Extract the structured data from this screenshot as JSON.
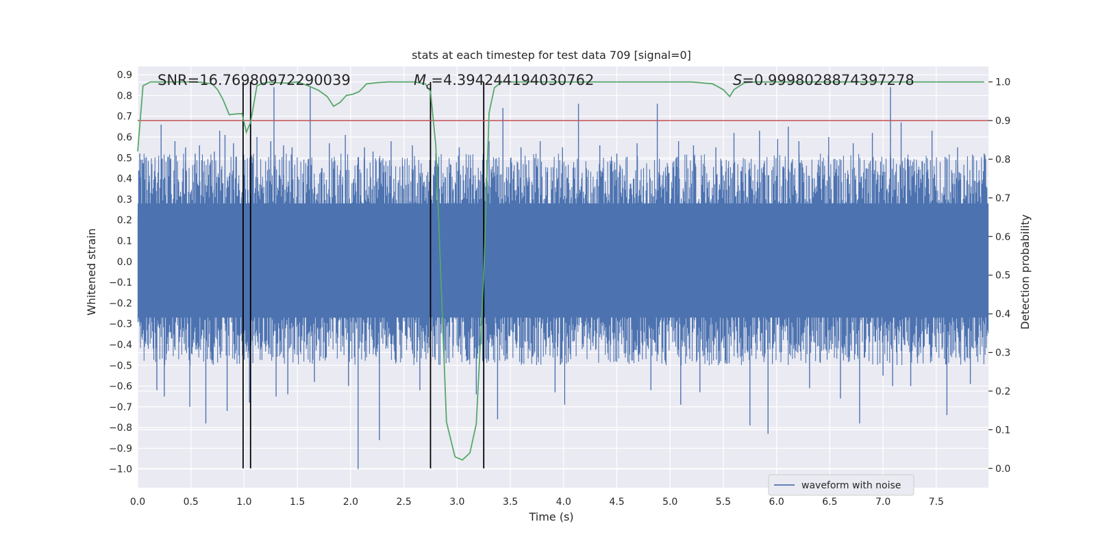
{
  "chart_data": {
    "type": "line",
    "title": "stats at each timestep for test data 709 [signal=0]",
    "xlabel": "Time (s)",
    "ylabel": "Whitened strain",
    "y2label": "Detection probability",
    "xlim": [
      0.0,
      7.99
    ],
    "ylim": [
      -1.09,
      0.94
    ],
    "y2lim": [
      -0.05,
      1.04
    ],
    "xticks": [
      "0.0",
      "0.5",
      "1.0",
      "1.5",
      "2.0",
      "2.5",
      "3.0",
      "3.5",
      "4.0",
      "4.5",
      "5.0",
      "5.5",
      "6.0",
      "6.5",
      "7.0",
      "7.5"
    ],
    "yticks": [
      "0.9",
      "0.8",
      "0.7",
      "0.6",
      "0.5",
      "0.4",
      "0.3",
      "0.2",
      "0.1",
      "0.0",
      "−0.1",
      "−0.2",
      "−0.3",
      "−0.4",
      "−0.5",
      "−0.6",
      "−0.7",
      "−0.8",
      "−0.9",
      "−1.0"
    ],
    "y2ticks": [
      "1.0",
      "0.9",
      "0.8",
      "0.7",
      "0.6",
      "0.5",
      "0.4",
      "0.3",
      "0.2",
      "0.1",
      "0.0"
    ],
    "annotations": {
      "snr": "SNR=16.76980972290039",
      "mc_symbol": "M",
      "mc_sub": "c",
      "mc_value": "=4.394244194030762",
      "s_symbol": "S",
      "s_value": "=0.9998028874397278"
    },
    "legend": {
      "label": "waveform with noise",
      "position": "lower right"
    },
    "threshold": {
      "y2": 0.9,
      "color": "#c44e52"
    },
    "vertical_lines": [
      0.99,
      1.06,
      2.75,
      3.25
    ],
    "waveform": {
      "name": "waveform with noise",
      "color": "#4c72b0",
      "spikes": [
        [
          0.02,
          0.52
        ],
        [
          0.18,
          -0.62
        ],
        [
          0.22,
          0.66
        ],
        [
          0.25,
          -0.65
        ],
        [
          0.35,
          0.58
        ],
        [
          0.45,
          0.55
        ],
        [
          0.49,
          -0.7
        ],
        [
          0.54,
          0.52
        ],
        [
          0.58,
          0.56
        ],
        [
          0.64,
          -0.78
        ],
        [
          0.72,
          0.53
        ],
        [
          0.77,
          0.63
        ],
        [
          0.82,
          0.61
        ],
        [
          0.84,
          -0.72
        ],
        [
          0.9,
          0.57
        ],
        [
          1.05,
          -0.68
        ],
        [
          1.12,
          0.6
        ],
        [
          1.25,
          0.58
        ],
        [
          1.28,
          0.84
        ],
        [
          1.3,
          -0.65
        ],
        [
          1.37,
          0.56
        ],
        [
          1.41,
          -0.64
        ],
        [
          1.45,
          0.55
        ],
        [
          1.62,
          0.84
        ],
        [
          1.66,
          -0.58
        ],
        [
          1.8,
          0.57
        ],
        [
          1.95,
          0.61
        ],
        [
          1.98,
          -0.6
        ],
        [
          2.07,
          -1.0
        ],
        [
          2.13,
          0.55
        ],
        [
          2.21,
          0.53
        ],
        [
          2.27,
          -0.86
        ],
        [
          2.38,
          0.58
        ],
        [
          2.58,
          0.56
        ],
        [
          2.65,
          -0.62
        ],
        [
          2.8,
          0.52
        ],
        [
          3.02,
          0.55
        ],
        [
          3.18,
          -0.64
        ],
        [
          3.3,
          0.58
        ],
        [
          3.38,
          -0.76
        ],
        [
          3.43,
          0.74
        ],
        [
          3.6,
          0.55
        ],
        [
          3.78,
          0.58
        ],
        [
          3.92,
          -0.63
        ],
        [
          3.99,
          0.55
        ],
        [
          4.01,
          -0.69
        ],
        [
          4.14,
          0.76
        ],
        [
          4.34,
          0.56
        ],
        [
          4.5,
          0.52
        ],
        [
          4.69,
          0.57
        ],
        [
          4.82,
          -0.62
        ],
        [
          4.88,
          0.76
        ],
        [
          5.08,
          0.58
        ],
        [
          5.1,
          -0.69
        ],
        [
          5.22,
          0.56
        ],
        [
          5.28,
          -0.63
        ],
        [
          5.43,
          0.55
        ],
        [
          5.6,
          0.62
        ],
        [
          5.75,
          -0.79
        ],
        [
          5.84,
          0.63
        ],
        [
          5.92,
          -0.83
        ],
        [
          6.01,
          0.59
        ],
        [
          6.11,
          0.65
        ],
        [
          6.21,
          0.58
        ],
        [
          6.31,
          -0.61
        ],
        [
          6.49,
          0.6
        ],
        [
          6.6,
          -0.66
        ],
        [
          6.72,
          0.57
        ],
        [
          6.78,
          -0.78
        ],
        [
          6.9,
          0.62
        ],
        [
          7.0,
          -0.55
        ],
        [
          7.07,
          0.84
        ],
        [
          7.09,
          -0.6
        ],
        [
          7.17,
          0.67
        ],
        [
          7.26,
          -0.6
        ],
        [
          7.46,
          0.63
        ],
        [
          7.6,
          -0.74
        ],
        [
          7.7,
          0.55
        ],
        [
          7.82,
          -0.59
        ],
        [
          7.95,
          0.52
        ]
      ]
    },
    "probability": {
      "name": "detection probability",
      "color": "#55a868",
      "x": [
        0.0,
        0.05,
        0.12,
        0.2,
        0.3,
        0.4,
        0.5,
        0.6,
        0.7,
        0.75,
        0.8,
        0.86,
        0.92,
        0.98,
        1.02,
        1.06,
        1.12,
        1.18,
        1.25,
        1.3,
        1.4,
        1.5,
        1.6,
        1.7,
        1.78,
        1.84,
        1.9,
        1.96,
        2.02,
        2.08,
        2.15,
        2.25,
        2.35,
        2.5,
        2.6,
        2.7,
        2.75,
        2.8,
        2.9,
        2.98,
        3.05,
        3.12,
        3.18,
        3.25,
        3.3,
        3.35,
        3.42,
        3.5,
        3.6,
        3.7,
        3.8,
        3.9,
        4.0,
        4.1,
        4.3,
        4.5,
        4.7,
        4.9,
        5.0,
        5.2,
        5.4,
        5.5,
        5.56,
        5.6,
        5.7,
        5.8,
        6.0,
        6.2,
        6.5,
        6.8,
        7.0,
        7.2,
        7.4,
        7.6,
        7.8,
        7.95
      ],
      "y": [
        0.82,
        0.99,
        1.0,
        1.0,
        1.0,
        1.0,
        1.0,
        0.999,
        0.995,
        0.98,
        0.955,
        0.915,
        0.917,
        0.918,
        0.87,
        0.895,
        0.99,
        0.997,
        1.0,
        0.998,
        0.997,
        1.0,
        0.99,
        0.978,
        0.962,
        0.937,
        0.947,
        0.965,
        0.968,
        0.975,
        0.995,
        0.998,
        1.0,
        1.0,
        1.0,
        0.995,
        0.975,
        0.835,
        0.12,
        0.03,
        0.022,
        0.04,
        0.115,
        0.5,
        0.92,
        0.985,
        1.0,
        1.0,
        1.0,
        1.0,
        1.0,
        1.0,
        1.0,
        1.0,
        1.0,
        1.0,
        1.0,
        1.0,
        1.0,
        1.0,
        0.995,
        0.98,
        0.962,
        0.98,
        0.998,
        1.0,
        1.0,
        1.0,
        1.0,
        1.0,
        1.0,
        1.0,
        1.0,
        1.0,
        1.0,
        1.0
      ]
    }
  }
}
